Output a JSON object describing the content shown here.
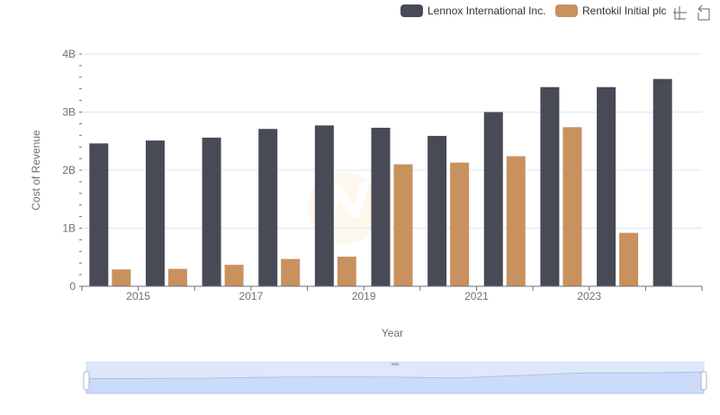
{
  "chart_data": {
    "type": "bar",
    "title": "",
    "xlabel": "Year",
    "ylabel": "Cost of Revenue",
    "ylim": [
      0,
      4000000000
    ],
    "y_ticks": [
      {
        "value": 0,
        "label": "0"
      },
      {
        "value": 1000000000,
        "label": "1B"
      },
      {
        "value": 2000000000,
        "label": "2B"
      },
      {
        "value": 3000000000,
        "label": "3B"
      },
      {
        "value": 4000000000,
        "label": "4B"
      }
    ],
    "categories": [
      "2014",
      "2015",
      "2016",
      "2017",
      "2018",
      "2019",
      "2020",
      "2021",
      "2022",
      "2023",
      "2024"
    ],
    "x_tick_labels": [
      "2015",
      "2017",
      "2019",
      "2021",
      "2023"
    ],
    "series": [
      {
        "name": "Lennox International Inc.",
        "color": "#484a56",
        "values": [
          2460000000,
          2510000000,
          2560000000,
          2710000000,
          2770000000,
          2730000000,
          2590000000,
          3000000000,
          3430000000,
          3430000000,
          3570000000
        ]
      },
      {
        "name": "Rentokil Initial plc",
        "color": "#c8915e",
        "values": [
          290000000,
          300000000,
          370000000,
          470000000,
          510000000,
          2100000000,
          2130000000,
          2240000000,
          2740000000,
          920000000,
          null
        ]
      }
    ],
    "legend_position": "top-right",
    "grid": true
  },
  "toolbox": {
    "icons": [
      "zoom-icon",
      "restore-icon"
    ]
  },
  "data_zoom": {
    "start_percent": 0,
    "end_percent": 100
  }
}
